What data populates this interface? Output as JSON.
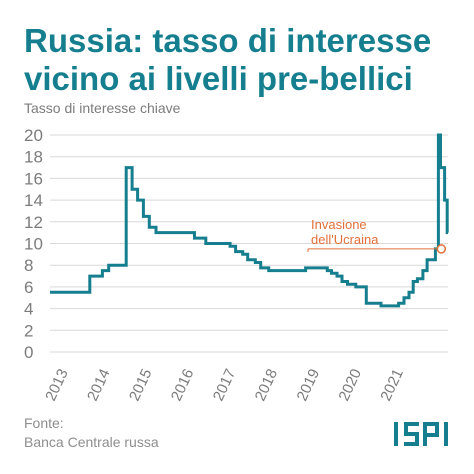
{
  "title_lines": [
    "Russia: tasso di interesse",
    "vicino ai livelli pre-bellici"
  ],
  "source": {
    "label": "Fonte:",
    "text": "Banca Centrale russa"
  },
  "logo": "ISPI",
  "colors": {
    "title": "#167f8f",
    "line": "#167f8f",
    "grid": "#d9d9d9",
    "annotation": "#e2703a",
    "text": "#7c7c7c"
  },
  "chart_data": {
    "type": "line",
    "title": "",
    "ylabel": "Tasso di interesse chiave",
    "xlabel": "",
    "ylim": [
      0,
      20
    ],
    "xlim": [
      2013.0,
      2022.5
    ],
    "yticks": [
      "0",
      "2",
      "4",
      "6",
      "8",
      "10",
      "12",
      "14",
      "16",
      "18",
      "20"
    ],
    "xticks": [
      "2013",
      "2014",
      "2015",
      "2016",
      "2017",
      "2018",
      "2019",
      "2020",
      "2021"
    ],
    "grid": "horizontal",
    "step": true,
    "series": [
      {
        "name": "",
        "x": [
          2013.0,
          2013.8,
          2013.95,
          2014.25,
          2014.4,
          2014.55,
          2014.82,
          2014.96,
          2015.09,
          2015.23,
          2015.37,
          2015.53,
          2015.7,
          2016.1,
          2016.45,
          2016.72,
          2017.0,
          2017.3,
          2017.43,
          2017.6,
          2017.72,
          2017.9,
          2018.03,
          2018.22,
          2018.95,
          2019.1,
          2019.5,
          2019.62,
          2019.72,
          2019.85,
          2019.97,
          2020.1,
          2020.3,
          2020.55,
          2020.9,
          2021.0,
          2021.22,
          2021.32,
          2021.45,
          2021.57,
          2021.67,
          2021.77,
          2021.9,
          2022.0,
          2022.2,
          2022.27,
          2022.32,
          2022.42,
          2022.48,
          2022.5
        ],
        "y": [
          5.5,
          5.5,
          7.0,
          7.5,
          8.0,
          8.0,
          17.0,
          15.0,
          14.0,
          12.5,
          11.5,
          11.0,
          11.0,
          11.0,
          10.5,
          10.0,
          10.0,
          9.75,
          9.25,
          9.0,
          8.5,
          8.25,
          7.75,
          7.5,
          7.5,
          7.75,
          7.75,
          7.5,
          7.25,
          7.0,
          6.5,
          6.25,
          6.0,
          4.5,
          4.25,
          4.25,
          4.25,
          4.5,
          5.0,
          5.5,
          6.5,
          6.75,
          7.5,
          8.5,
          9.5,
          20.0,
          17.0,
          14.0,
          11.0,
          11.0
        ]
      }
    ],
    "annotations": [
      {
        "text": [
          "Invasione",
          "dell'Ucraina"
        ],
        "x": 2022.15,
        "y": 9.5
      }
    ]
  }
}
